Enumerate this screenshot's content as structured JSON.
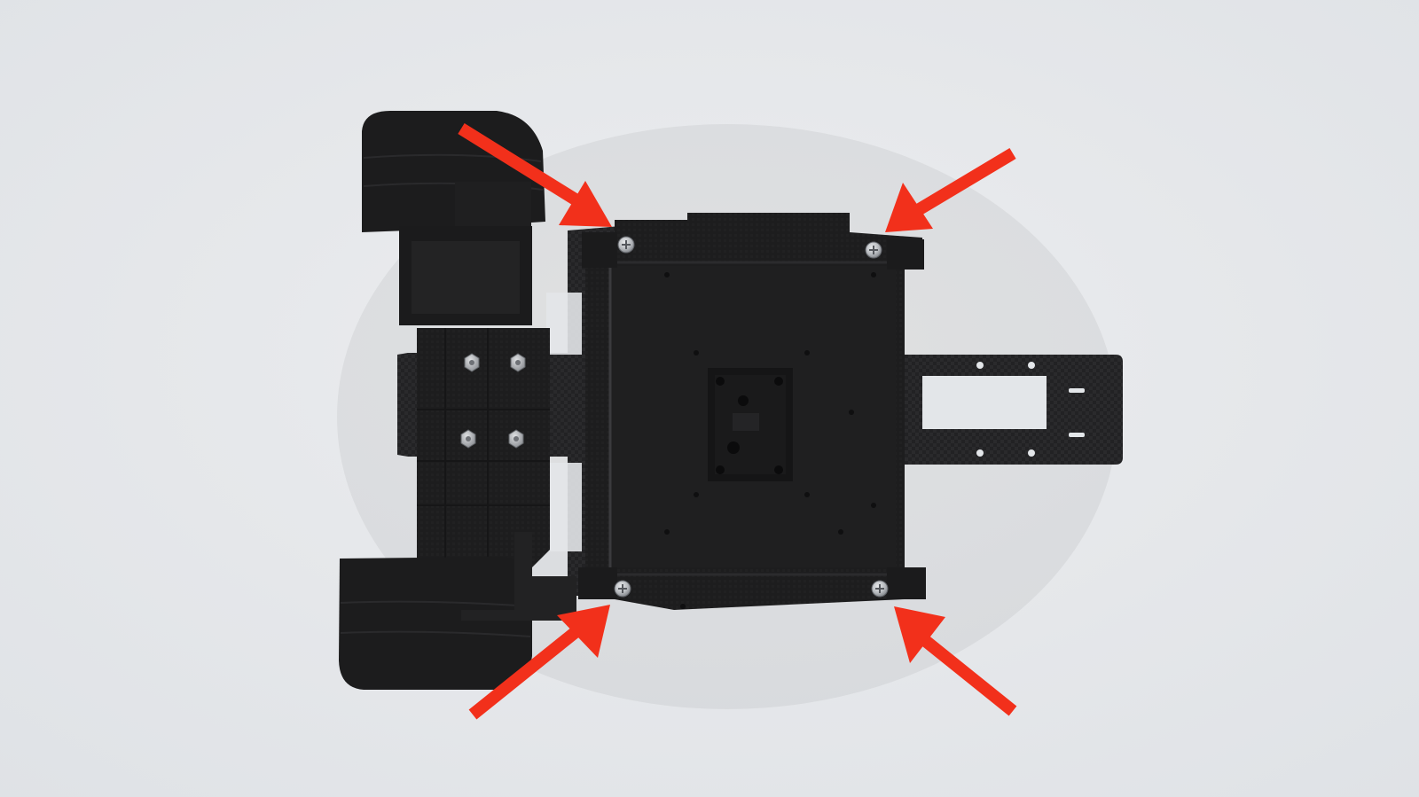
{
  "scene": {
    "background_color": "#e4e7ea",
    "part_color": "#1e1e1f",
    "part_edge_color": "#2c2c2e",
    "carbon_color": "#232325",
    "screw_color": "#b9bcc0",
    "arrow_color": "#f2301b"
  },
  "objects": {
    "chassis": {
      "name": "chassis-assembly"
    },
    "screws": [
      {
        "name": "screw-top-left"
      },
      {
        "name": "screw-top-right"
      },
      {
        "name": "screw-bottom-left"
      },
      {
        "name": "screw-bottom-right"
      }
    ],
    "arrows": [
      {
        "name": "arrow-top-left",
        "points_to": "screw-top-left"
      },
      {
        "name": "arrow-top-right",
        "points_to": "screw-top-right"
      },
      {
        "name": "arrow-bottom-left",
        "points_to": "screw-bottom-left"
      },
      {
        "name": "arrow-bottom-right",
        "points_to": "screw-bottom-right"
      }
    ]
  }
}
